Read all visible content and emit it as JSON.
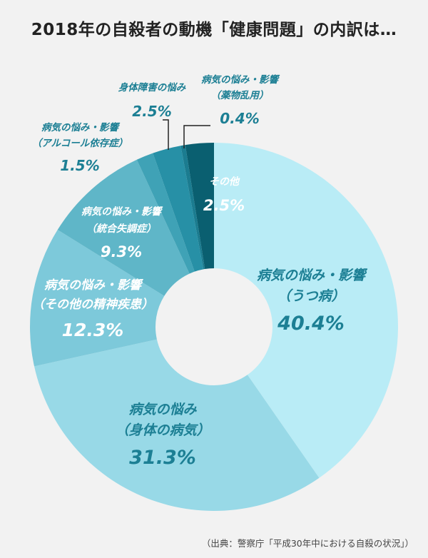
{
  "title": "2018年の自殺者の動機「健康問題」の内訳は…",
  "source": "（出典：警察庁「平成30年中における自殺の状況」）",
  "colors": {
    "background": "#f2f2f2",
    "label_light": "#ffffff",
    "label_teal": "#1c7f94",
    "leader_line": "#222222"
  },
  "chart_data": {
    "type": "pie",
    "donut": true,
    "title": "2018年の自殺者の動機「健康問題」の内訳は…",
    "slices": [
      {
        "line1": "病気の悩み・影響",
        "line2": "（うつ病）",
        "value_label": "40.4%",
        "value": 40.4,
        "color": "#b9ecf6"
      },
      {
        "line1": "病気の悩み",
        "line2": "（身体の病気）",
        "value_label": "31.3%",
        "value": 31.3,
        "color": "#98d9e7"
      },
      {
        "line1": "病気の悩み・影響",
        "line2": "（その他の精神疾患）",
        "value_label": "12.3%",
        "value": 12.3,
        "color": "#7dc9da"
      },
      {
        "line1": "病気の悩み・影響",
        "line2": "（統合失調症）",
        "value_label": "9.3%",
        "value": 9.3,
        "color": "#5fb6c8"
      },
      {
        "line1": "病気の悩み・影響",
        "line2": "（アルコール依存症）",
        "value_label": "1.5%",
        "value": 1.5,
        "color": "#3fa2b6"
      },
      {
        "line1": "身体障害の悩み",
        "line2": "",
        "value_label": "2.5%",
        "value": 2.5,
        "color": "#2790a6"
      },
      {
        "line1": "病気の悩み・影響",
        "line2": "（薬物乱用）",
        "value_label": "0.4%",
        "value": 0.4,
        "color": "#1b7c90"
      },
      {
        "line1": "その他",
        "line2": "",
        "value_label": "2.5%",
        "value": 2.5,
        "color": "#0a5f70"
      }
    ]
  }
}
